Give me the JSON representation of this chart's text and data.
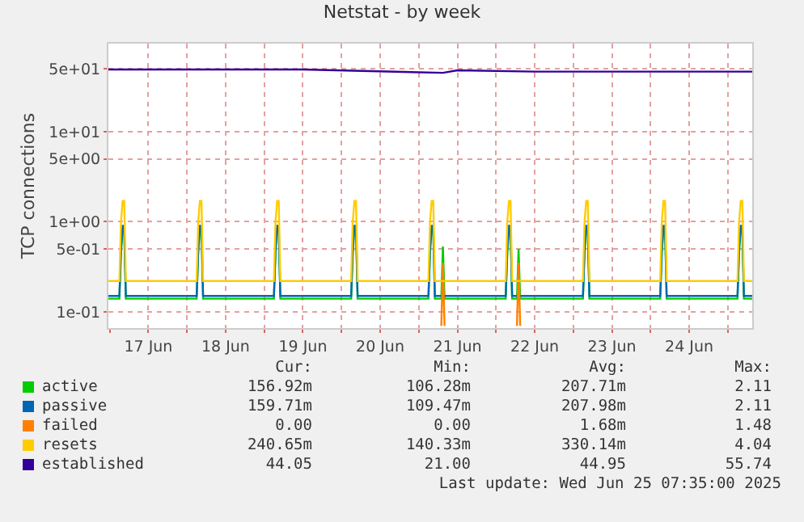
{
  "chart_data": {
    "type": "line",
    "title": "Netstat - by week",
    "ylabel": "TCP connections",
    "log": true,
    "grid": true,
    "legend": "bottom",
    "marker": "none",
    "line_style": "solid",
    "x": [
      "2025-06-16T23:35",
      "2025-06-17T00:00",
      "2025-06-17T03:00",
      "2025-06-17T03:30",
      "2025-06-17T04:00",
      "2025-06-17T04:30",
      "2025-06-17T05:00",
      "2025-06-17T12:00",
      "2025-06-18T00:00",
      "2025-06-18T03:00",
      "2025-06-18T03:30",
      "2025-06-18T04:00",
      "2025-06-18T04:30",
      "2025-06-18T05:00",
      "2025-06-18T12:00",
      "2025-06-19T00:00",
      "2025-06-19T03:00",
      "2025-06-19T03:30",
      "2025-06-19T04:00",
      "2025-06-19T04:30",
      "2025-06-19T05:00",
      "2025-06-19T12:00",
      "2025-06-20T00:00",
      "2025-06-20T03:00",
      "2025-06-20T03:30",
      "2025-06-20T04:00",
      "2025-06-20T04:30",
      "2025-06-20T05:00",
      "2025-06-20T12:00",
      "2025-06-21T00:00",
      "2025-06-21T03:00",
      "2025-06-21T03:30",
      "2025-06-21T04:00",
      "2025-06-21T04:30",
      "2025-06-21T05:00",
      "2025-06-21T07:00",
      "2025-06-21T07:30",
      "2025-06-21T08:00",
      "2025-06-21T12:00",
      "2025-06-22T00:00",
      "2025-06-22T03:00",
      "2025-06-22T03:30",
      "2025-06-22T04:00",
      "2025-06-22T04:30",
      "2025-06-22T05:00",
      "2025-06-22T06:30",
      "2025-06-22T07:00",
      "2025-06-22T07:30",
      "2025-06-22T12:00",
      "2025-06-23T00:00",
      "2025-06-23T03:00",
      "2025-06-23T03:30",
      "2025-06-23T04:00",
      "2025-06-23T04:30",
      "2025-06-23T05:00",
      "2025-06-23T12:00",
      "2025-06-24T00:00",
      "2025-06-24T03:00",
      "2025-06-24T03:30",
      "2025-06-24T04:00",
      "2025-06-24T04:30",
      "2025-06-24T05:00",
      "2025-06-24T12:00",
      "2025-06-25T00:00",
      "2025-06-25T03:00",
      "2025-06-25T03:30",
      "2025-06-25T04:00",
      "2025-06-25T04:30",
      "2025-06-25T05:00",
      "2025-06-25T07:35"
    ],
    "series": [
      {
        "name": "active",
        "color": "#00cc00",
        "values": [
          0.14,
          0.14,
          0.14,
          0.45,
          0.85,
          0.85,
          0.14,
          0.14,
          0.14,
          0.14,
          0.45,
          0.85,
          0.85,
          0.14,
          0.14,
          0.14,
          0.14,
          0.45,
          0.85,
          0.85,
          0.14,
          0.14,
          0.14,
          0.14,
          0.45,
          0.85,
          0.85,
          0.14,
          0.14,
          0.14,
          0.14,
          0.45,
          0.85,
          0.85,
          0.14,
          0.14,
          0.53,
          0.14,
          0.14,
          0.14,
          0.14,
          0.45,
          0.85,
          0.85,
          0.14,
          0.14,
          0.5,
          0.14,
          0.14,
          0.14,
          0.14,
          0.45,
          0.85,
          0.85,
          0.14,
          0.14,
          0.14,
          0.14,
          0.45,
          0.85,
          0.85,
          0.14,
          0.14,
          0.14,
          0.14,
          0.45,
          0.85,
          0.85,
          0.14,
          0.14
        ]
      },
      {
        "name": "passive",
        "color": "#0066b3",
        "values": [
          0.15,
          0.15,
          0.15,
          0.5,
          0.9,
          0.9,
          0.15,
          0.15,
          0.15,
          0.15,
          0.5,
          0.9,
          0.9,
          0.15,
          0.15,
          0.15,
          0.15,
          0.5,
          0.9,
          0.9,
          0.15,
          0.15,
          0.15,
          0.15,
          0.5,
          0.9,
          0.9,
          0.15,
          0.15,
          0.15,
          0.15,
          0.5,
          0.9,
          0.9,
          0.15,
          0.15,
          0.15,
          0.15,
          0.15,
          0.15,
          0.15,
          0.5,
          0.9,
          0.9,
          0.15,
          0.15,
          0.15,
          0.15,
          0.15,
          0.15,
          0.15,
          0.5,
          0.9,
          0.9,
          0.15,
          0.15,
          0.15,
          0.15,
          0.5,
          0.9,
          0.9,
          0.15,
          0.15,
          0.15,
          0.15,
          0.5,
          0.9,
          0.9,
          0.15,
          0.15
        ]
      },
      {
        "name": "failed",
        "color": "#ff8000",
        "values": [
          null,
          null,
          null,
          null,
          null,
          null,
          null,
          null,
          null,
          null,
          null,
          null,
          null,
          null,
          null,
          null,
          null,
          null,
          null,
          null,
          null,
          null,
          null,
          null,
          null,
          null,
          null,
          null,
          null,
          null,
          null,
          null,
          null,
          null,
          null,
          0.07,
          0.35,
          0.07,
          null,
          null,
          null,
          null,
          null,
          null,
          null,
          0.07,
          0.35,
          0.07,
          null,
          null,
          null,
          null,
          null,
          null,
          null,
          null,
          null,
          null,
          null,
          null,
          null,
          null,
          null,
          null,
          null,
          null,
          null,
          null,
          null,
          null
        ]
      },
      {
        "name": "resets",
        "color": "#ffcc00",
        "values": [
          0.22,
          0.22,
          0.22,
          1.0,
          1.7,
          1.7,
          0.22,
          0.22,
          0.22,
          0.22,
          1.0,
          1.7,
          1.7,
          0.22,
          0.22,
          0.22,
          0.22,
          1.0,
          1.7,
          1.7,
          0.22,
          0.22,
          0.22,
          0.22,
          1.0,
          1.7,
          1.7,
          0.22,
          0.22,
          0.22,
          0.22,
          1.0,
          1.7,
          1.7,
          0.22,
          0.22,
          0.22,
          0.22,
          0.22,
          0.22,
          0.22,
          1.0,
          1.7,
          1.7,
          0.22,
          0.22,
          0.22,
          0.22,
          0.22,
          0.22,
          0.22,
          1.0,
          1.7,
          1.7,
          0.22,
          0.22,
          0.22,
          0.22,
          1.0,
          1.7,
          1.7,
          0.22,
          0.22,
          0.22,
          0.22,
          1.0,
          1.7,
          1.7,
          0.22,
          0.22
        ]
      },
      {
        "name": "established",
        "color": "#330099",
        "x": [
          "2025-06-16T23:35",
          "2025-06-19T12:00",
          "2025-06-21T07:30",
          "2025-06-21T12:00",
          "2025-06-22T12:00",
          "2025-06-25T07:35"
        ],
        "values": [
          49,
          49,
          45,
          48,
          46.5,
          46.5
        ]
      }
    ],
    "xlim": [
      "2025-06-16T23:35",
      "2025-06-25T07:35"
    ],
    "xticks": [
      {
        "value": "2025-06-17T00:00",
        "label": null
      },
      {
        "value": "2025-06-17T12:00",
        "label": "17 Jun"
      },
      {
        "value": "2025-06-18T00:00",
        "label": null
      },
      {
        "value": "2025-06-18T12:00",
        "label": "18 Jun"
      },
      {
        "value": "2025-06-19T00:00",
        "label": null
      },
      {
        "value": "2025-06-19T12:00",
        "label": "19 Jun"
      },
      {
        "value": "2025-06-20T00:00",
        "label": null
      },
      {
        "value": "2025-06-20T12:00",
        "label": "20 Jun"
      },
      {
        "value": "2025-06-21T00:00",
        "label": null
      },
      {
        "value": "2025-06-21T12:00",
        "label": "21 Jun"
      },
      {
        "value": "2025-06-22T00:00",
        "label": null
      },
      {
        "value": "2025-06-22T12:00",
        "label": "22 Jun"
      },
      {
        "value": "2025-06-23T00:00",
        "label": null
      },
      {
        "value": "2025-06-23T12:00",
        "label": "23 Jun"
      },
      {
        "value": "2025-06-24T00:00",
        "label": null
      },
      {
        "value": "2025-06-24T12:00",
        "label": "24 Jun"
      },
      {
        "value": "2025-06-25T00:00",
        "label": null
      }
    ],
    "ylim": [
      0.066,
      95
    ],
    "yticks": [
      {
        "value": 0.1,
        "label": "1e-01"
      },
      {
        "value": 0.5,
        "label": "5e-01"
      },
      {
        "value": 1,
        "label": "1e+00"
      },
      {
        "value": 5,
        "label": "5e+00"
      },
      {
        "value": 10,
        "label": "1e+01"
      },
      {
        "value": 50,
        "label": "5e+01"
      }
    ],
    "annotations": [
      "Cur:",
      "Min:",
      "Avg:",
      "Max:",
      "156.92m",
      "106.28m",
      "207.71m",
      "2.11",
      "159.71m",
      "109.47m",
      "207.98m",
      "2.11",
      "0.00",
      "0.00",
      "1.68m",
      "1.48",
      "240.65m",
      "140.33m",
      "330.14m",
      "4.04",
      "44.05",
      "21.00",
      "44.95",
      "55.74",
      "Last update: Wed Jun 25 07:35:00 2025"
    ]
  }
}
